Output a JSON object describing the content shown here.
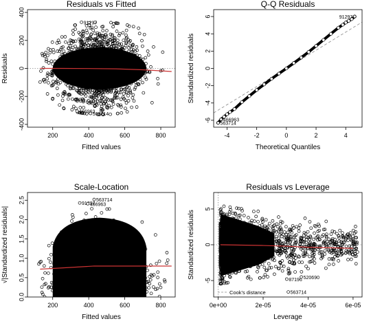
{
  "chart_data": [
    {
      "type": "scatter",
      "title": "Residuals vs Fitted",
      "xlabel": "Fitted values",
      "ylabel": "Residuals",
      "xlim": [
        60,
        880
      ],
      "ylim": [
        -420,
        420
      ],
      "xticks": [
        200,
        400,
        600,
        800
      ],
      "xtick_labels": [
        "200",
        "400",
        "600",
        "800"
      ],
      "yticks": [
        -400,
        -200,
        0,
        200,
        400
      ],
      "ytick_labels": [
        "-400",
        "-200",
        "0",
        "200",
        "400"
      ],
      "reference_line": {
        "y": 0,
        "style": "dotted",
        "color": "#888888"
      },
      "smooth_line": {
        "color": "#cc3333",
        "x": [
          130,
          250,
          400,
          550,
          700,
          860
        ],
        "y": [
          0,
          0,
          -1,
          -3,
          -10,
          -22
        ]
      },
      "annotations": [
        {
          "label": "91297",
          "x": 360,
          "y": 330
        },
        {
          "label": "466963",
          "x": 335,
          "y": -305
        },
        {
          "label": "563714",
          "x": 410,
          "y": -322
        }
      ],
      "cloud": {
        "x_range": [
          120,
          860
        ],
        "y_range": [
          -330,
          330
        ]
      }
    },
    {
      "type": "scatter",
      "title": "Q-Q Residuals",
      "xlabel": "Theoretical Quantiles",
      "ylabel": "Standardized residuals",
      "xlim": [
        -4.9,
        5.1
      ],
      "ylim": [
        -6.8,
        6.8
      ],
      "xticks": [
        -4,
        -2,
        0,
        2,
        4
      ],
      "xtick_labels": [
        "-4",
        "-2",
        "0",
        "2",
        "4"
      ],
      "yticks": [
        -6,
        -4,
        -2,
        0,
        2,
        4,
        6
      ],
      "ytick_labels": [
        "-6",
        "-4",
        "-2",
        "0",
        "2",
        "4",
        "6"
      ],
      "reference_line": {
        "style": "dashed",
        "color": "#888888",
        "slope": 1.05,
        "intercept": 0
      },
      "quantile_points": {
        "x": [
          -4.6,
          -4.4,
          -4.2,
          -4.0,
          -3.8,
          -3.5,
          -3.0,
          -2.5,
          -2.0,
          -1.5,
          -1.0,
          -0.5,
          0,
          0.5,
          1.0,
          1.5,
          2.0,
          2.5,
          3.0,
          3.5,
          3.8,
          4.0,
          4.2,
          4.4,
          4.6
        ],
        "y": [
          -6.3,
          -5.9,
          -5.6,
          -5.3,
          -5.05,
          -4.7,
          -3.9,
          -3.2,
          -2.5,
          -1.85,
          -1.2,
          -0.6,
          0,
          0.62,
          1.25,
          1.9,
          2.6,
          3.3,
          4.0,
          4.7,
          5.05,
          5.3,
          5.5,
          5.7,
          6.0
        ]
      },
      "annotations": [
        {
          "label": "91297",
          "x": 4.6,
          "y": 6.0
        },
        {
          "label": "466963",
          "x": -4.4,
          "y": -5.9
        },
        {
          "label": "563714",
          "x": -4.6,
          "y": -6.3
        }
      ]
    },
    {
      "type": "scatter",
      "title": "Scale-Location",
      "xlabel": "Fitted values",
      "ylabel": "√|Standardized residuals|",
      "xlim": [
        60,
        880
      ],
      "ylim": [
        0,
        2.7
      ],
      "xticks": [
        200,
        400,
        600,
        800
      ],
      "xtick_labels": [
        "200",
        "400",
        "600",
        "800"
      ],
      "yticks": [
        0.0,
        0.5,
        1.0,
        1.5,
        2.0,
        2.5
      ],
      "ytick_labels": [
        "0.0",
        "0.5",
        "1.0",
        "1.5",
        "2.0",
        "2.5"
      ],
      "smooth_line": {
        "color": "#cc3333",
        "x": [
          130,
          250,
          430,
          600,
          860
        ],
        "y": [
          0.72,
          0.75,
          0.8,
          0.8,
          0.8
        ]
      },
      "annotations": [
        {
          "label": "563714",
          "x": 430,
          "y": 2.52
        },
        {
          "label": "91297",
          "x": 350,
          "y": 2.43
        },
        {
          "label": "466963",
          "x": 395,
          "y": 2.41
        }
      ],
      "cloud": {
        "x_range": [
          120,
          860
        ],
        "y_range": [
          0,
          2.3
        ]
      }
    },
    {
      "type": "scatter",
      "title": "Residuals vs Leverage",
      "xlabel": "Leverage",
      "ylabel": "Standardized residuals",
      "xlim": [
        -2e-06,
        6.4e-05
      ],
      "ylim": [
        -7.3,
        7.3
      ],
      "xticks": [
        0,
        2e-05,
        4e-05,
        6e-05
      ],
      "xtick_labels": [
        "0e+00",
        "2e-05",
        "4e-05",
        "6e-05"
      ],
      "yticks": [
        -5,
        0,
        5
      ],
      "ytick_labels": [
        "-5",
        "0",
        "5"
      ],
      "reference_line": {
        "y": 0,
        "style": "dotted",
        "color": "#888888"
      },
      "smooth_line": {
        "color": "#cc3333",
        "x": [
          1e-06,
          1e-05,
          2e-05,
          3e-05,
          4e-05,
          6e-05
        ],
        "y": [
          0,
          -0.05,
          -0.1,
          -0.2,
          -0.35,
          -0.5
        ]
      },
      "legend": {
        "label": "Cook's distance",
        "style": "dashed",
        "color": "#888888",
        "placement": "bottom-left"
      },
      "annotations": [
        {
          "label": "87196",
          "x": 3.05e-05,
          "y": -4.8
        },
        {
          "label": "520690",
          "x": 3.7e-05,
          "y": -4.5
        },
        {
          "label": "563714",
          "x": 3.12e-05,
          "y": -6.6
        }
      ],
      "cloud": {
        "x_range": [
          1e-06,
          6.2e-05
        ],
        "y_range": [
          -5.5,
          6
        ]
      }
    }
  ]
}
